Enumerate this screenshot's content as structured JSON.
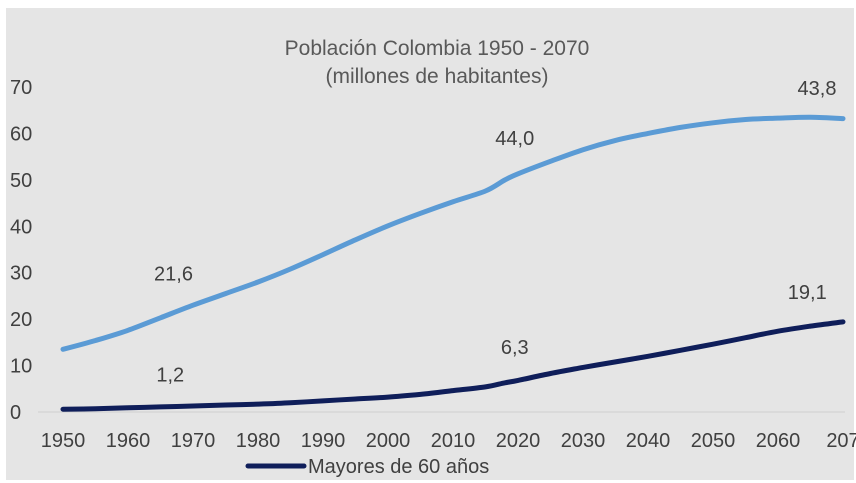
{
  "chart_data": {
    "type": "line",
    "title": "Población Colombia 1950 - 2070",
    "subtitle": "(millones de habitantes)",
    "xlabel": "",
    "ylabel": "",
    "xlim": [
      1950,
      2070
    ],
    "ylim": [
      0,
      70
    ],
    "x_ticks": [
      "1950",
      "1960",
      "1970",
      "1980",
      "1990",
      "2000",
      "2010",
      "2020",
      "2030",
      "2040",
      "2050",
      "2060",
      "207"
    ],
    "y_ticks": [
      "0",
      "10",
      "20",
      "30",
      "40",
      "50",
      "60",
      "70"
    ],
    "grid": false,
    "legend_position": "bottom-left",
    "x": [
      1950,
      1955,
      1960,
      1965,
      1970,
      1975,
      1980,
      1985,
      1990,
      1995,
      2000,
      2005,
      2010,
      2015,
      2018,
      2020,
      2025,
      2030,
      2035,
      2040,
      2045,
      2050,
      2055,
      2060,
      2065,
      2070
    ],
    "series": [
      {
        "color": "#5B9BD5",
        "values": [
          13.5,
          15.4,
          17.6,
          20.3,
          23.0,
          25.5,
          28.0,
          30.8,
          33.9,
          37.1,
          40.1,
          42.8,
          45.3,
          47.6,
          50.0,
          51.3,
          54.0,
          56.5,
          58.5,
          60.0,
          61.3,
          62.3,
          63.0,
          63.3,
          63.5,
          63.2
        ]
      },
      {
        "name": "Mayores de 60 años",
        "color": "#0F1E5A",
        "values": [
          0.6,
          0.7,
          0.9,
          1.1,
          1.3,
          1.5,
          1.7,
          2.0,
          2.4,
          2.8,
          3.2,
          3.8,
          4.6,
          5.4,
          6.3,
          6.8,
          8.3,
          9.6,
          10.8,
          12.0,
          13.3,
          14.6,
          16.0,
          17.4,
          18.5,
          19.4
        ]
      }
    ],
    "annotations": [
      {
        "text": "21,6",
        "x": 1967,
        "y": 28.3
      },
      {
        "text": "44,0",
        "x": 2019.5,
        "y": 57.5
      },
      {
        "text": "43,8",
        "x": 2066,
        "y": 68.3
      },
      {
        "text": "1,2",
        "x": 1966.5,
        "y": 6.6
      },
      {
        "text": "6,3",
        "x": 2019.5,
        "y": 12.5
      },
      {
        "text": "19,1",
        "x": 2064.5,
        "y": 24.3
      }
    ]
  }
}
